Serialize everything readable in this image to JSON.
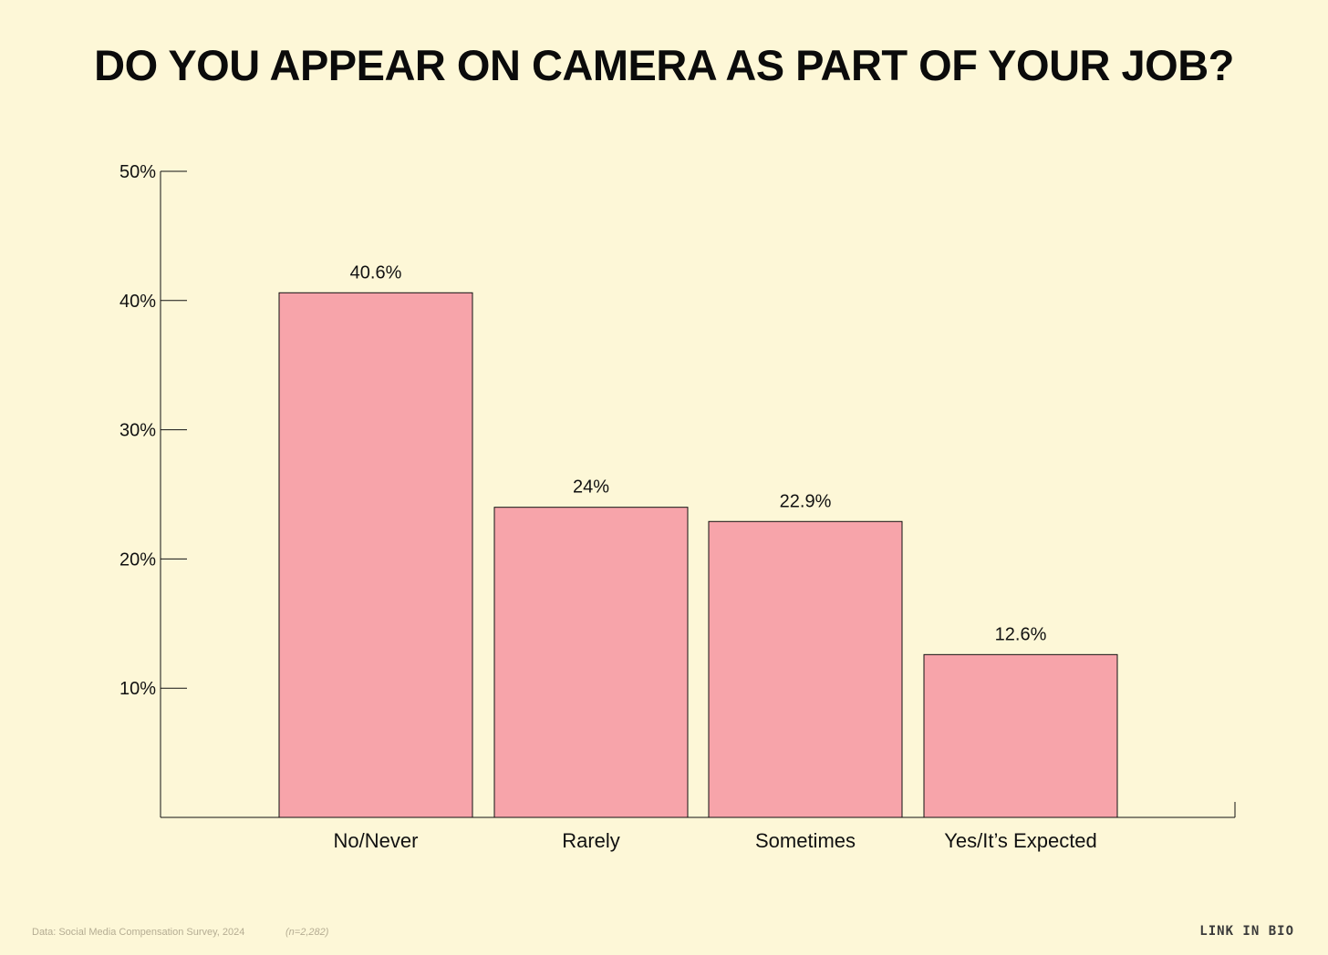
{
  "title": "DO YOU APPEAR ON CAMERA AS PART OF YOUR JOB?",
  "footer": {
    "source": "Data: Social Media Compensation Survey, 2024",
    "sample": "(n=2,282)",
    "logo": "LINK IN BIO"
  },
  "colors": {
    "background": "#fdf7d7",
    "bar": "#f7a4aa",
    "axis": "#111111"
  },
  "chart_data": {
    "type": "bar",
    "title": "DO YOU APPEAR ON CAMERA AS PART OF YOUR JOB?",
    "categories": [
      "No/Never",
      "Rarely",
      "Sometimes",
      "Yes/It’s Expected"
    ],
    "values": [
      40.6,
      24,
      22.9,
      12.6
    ],
    "data_labels": [
      "40.6%",
      "24%",
      "22.9%",
      "12.6%"
    ],
    "ylim": [
      0,
      50
    ],
    "yticks": [
      10,
      20,
      30,
      40,
      50
    ],
    "ytick_labels": [
      "10%",
      "20%",
      "30%",
      "40%",
      "50%"
    ],
    "xlabel": "",
    "ylabel": "",
    "grid": false,
    "legend": "none"
  }
}
